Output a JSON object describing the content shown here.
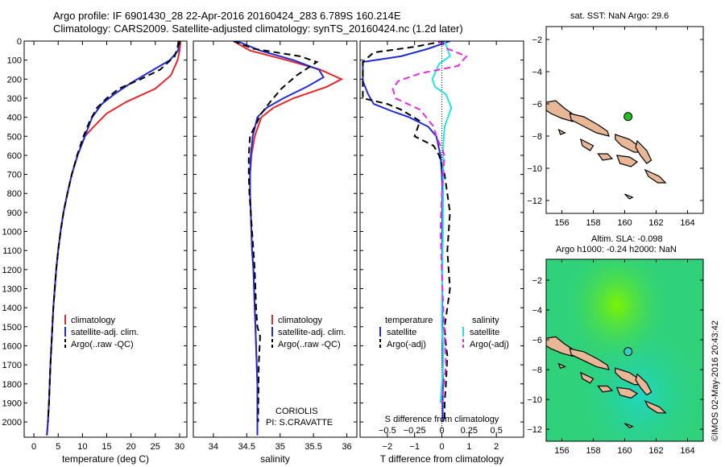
{
  "title": {
    "line1": "Argo profile: IF 6901430_28 22-Apr-2016 20160424_283 6.789S 160.214E",
    "line2": "Climatology: CARS2009. Satellite-adjusted climatology: synTS_20160424.nc (1.2d later)"
  },
  "map1": {
    "title": "sat. SST: NaN  Argo: 29.6"
  },
  "map2": {
    "title_line1": "Altim. SLA: -0.098",
    "title_line2": "Argo h1000: -0.24 h2000: NaN"
  },
  "credit": "©IMOS 02-May-2016 20:43:42",
  "annotations": {
    "institution": "CORIOLIS",
    "pi": "PI: S.CRAVATTE"
  },
  "colors": {
    "climatology": "#e8262a",
    "satellite": "#1f2bd6",
    "argo": "#000000",
    "salinity_satellite": "#22e4e4",
    "salinity_argo": "#e629e6",
    "map_fill_sst": "#ffffff",
    "map_land": "#e8b896",
    "float_marker_sst": "#21c124",
    "float_marker_sla": "#31d1c7",
    "sla_high": "#7cf400",
    "sla_mid": "#2fd17a",
    "sla_low": "#20d6c2"
  },
  "chart_data": [
    {
      "type": "line",
      "title": "",
      "xlabel": "temperature (deg C)",
      "ylabel": "",
      "xlim": [
        -2,
        31.5
      ],
      "ylim": [
        2080,
        0
      ],
      "y_reversed": true,
      "xticks": [
        0,
        5,
        10,
        15,
        20,
        25,
        30
      ],
      "yticks": [
        0,
        100,
        200,
        300,
        400,
        500,
        600,
        700,
        800,
        900,
        1000,
        1100,
        1200,
        1300,
        1400,
        1500,
        1600,
        1700,
        1800,
        1900,
        2000
      ],
      "legend": {
        "position": "bottom-center",
        "entries": [
          "climatology",
          "satellite-adj. clim.",
          "Argo(..raw -QC)"
        ]
      },
      "series": [
        {
          "name": "climatology",
          "style": "solid",
          "color_key": "climatology",
          "x": [
            30.2,
            30.0,
            29.6,
            28.2,
            25.0,
            19.0,
            15.0,
            12.3,
            10.5,
            9.0,
            7.8,
            6.9,
            6.1,
            5.5,
            5.0,
            4.6,
            4.3,
            4.0,
            3.8,
            3.6,
            3.4,
            3.25,
            3.1,
            3.0,
            2.9,
            2.8,
            2.7,
            2.6
          ],
          "y": [
            0,
            50,
            100,
            180,
            250,
            320,
            380,
            450,
            500,
            600,
            700,
            800,
            900,
            1000,
            1100,
            1200,
            1300,
            1400,
            1500,
            1600,
            1700,
            1800,
            1900,
            1950,
            2000,
            2030,
            2060,
            2070
          ]
        },
        {
          "name": "satellite-adj. clim.",
          "style": "solid",
          "color_key": "satellite",
          "x": [
            29.9,
            29.7,
            28.0,
            24.0,
            20.0,
            16.5,
            14.0,
            12.0,
            10.5,
            9.0,
            7.8,
            6.9,
            6.1,
            5.5,
            5.0,
            4.6,
            4.3,
            4.0,
            3.8,
            3.6,
            3.4,
            3.25,
            3.1,
            2.9,
            2.7
          ],
          "y": [
            0,
            50,
            100,
            160,
            220,
            280,
            330,
            400,
            500,
            600,
            700,
            800,
            900,
            1000,
            1100,
            1200,
            1300,
            1400,
            1500,
            1600,
            1700,
            1800,
            1900,
            2000,
            2070
          ]
        },
        {
          "name": "Argo(..raw -QC)",
          "style": "dashed",
          "color_key": "argo",
          "x": [
            29.8,
            29.6,
            29.0,
            26.0,
            22.0,
            17.5,
            15.0,
            13.0,
            11.5,
            10.2,
            8.9,
            7.8,
            6.9,
            6.1,
            5.5,
            5.0,
            4.6,
            4.3,
            4.0,
            3.8,
            3.6,
            3.4,
            3.25,
            3.1,
            3.0,
            2.9
          ],
          "y": [
            0,
            30,
            80,
            150,
            200,
            250,
            300,
            350,
            420,
            500,
            600,
            700,
            800,
            900,
            1000,
            1100,
            1200,
            1300,
            1400,
            1500,
            1600,
            1700,
            1800,
            1900,
            1950,
            2000
          ]
        }
      ]
    },
    {
      "type": "line",
      "title": "",
      "xlabel": "salinity",
      "ylabel": "",
      "xlim": [
        33.7,
        36.15
      ],
      "ylim": [
        2080,
        0
      ],
      "y_reversed": true,
      "xticks": [
        34,
        34.5,
        35,
        35.5,
        36
      ],
      "legend": {
        "position": "bottom-right",
        "entries": [
          "climatology",
          "satellite-adj. clim.",
          "Argo(..raw -QC)"
        ]
      },
      "series": [
        {
          "name": "climatology",
          "style": "solid",
          "color_key": "climatology",
          "x": [
            34.3,
            34.55,
            35.1,
            35.6,
            35.92,
            35.7,
            35.2,
            34.9,
            34.72,
            34.62,
            34.57,
            34.55,
            34.55,
            34.56,
            34.57,
            34.58,
            34.6,
            34.61,
            34.62,
            34.63,
            34.64,
            34.65,
            34.66,
            34.66,
            34.66
          ],
          "y": [
            0,
            50,
            100,
            150,
            200,
            240,
            300,
            350,
            400,
            500,
            600,
            700,
            800,
            900,
            1000,
            1100,
            1200,
            1300,
            1400,
            1500,
            1600,
            1700,
            1800,
            1900,
            2070
          ]
        },
        {
          "name": "satellite-adj. clim.",
          "style": "solid",
          "color_key": "satellite",
          "x": [
            34.35,
            34.7,
            35.2,
            35.58,
            35.65,
            35.4,
            35.05,
            34.8,
            34.66,
            34.59,
            34.56,
            34.55,
            34.55,
            34.56,
            34.57,
            34.58,
            34.6,
            34.61,
            34.62,
            34.63,
            34.64,
            34.65,
            34.66,
            34.66
          ],
          "y": [
            0,
            50,
            100,
            150,
            190,
            240,
            300,
            350,
            400,
            500,
            600,
            700,
            800,
            900,
            1000,
            1100,
            1200,
            1300,
            1400,
            1500,
            1600,
            1700,
            1800,
            2070
          ]
        },
        {
          "name": "Argo(..raw -QC)",
          "style": "dashed",
          "color_key": "argo",
          "x": [
            34.3,
            34.6,
            35.3,
            35.55,
            35.25,
            35.02,
            34.85,
            34.72,
            34.62,
            34.55,
            34.53,
            34.53,
            34.54,
            34.56,
            34.58,
            34.6,
            34.62,
            34.63,
            34.64,
            34.66,
            34.7,
            34.68,
            34.67
          ],
          "y": [
            0,
            40,
            80,
            110,
            180,
            250,
            320,
            380,
            450,
            500,
            600,
            700,
            800,
            900,
            1000,
            1100,
            1200,
            1300,
            1400,
            1500,
            1550,
            1700,
            2000
          ]
        }
      ]
    },
    {
      "type": "line",
      "title": "",
      "xlabel": "T difference from climatology",
      "xlabel_top": "S difference from climatology",
      "ylabel": "",
      "xlim": [
        -3,
        3
      ],
      "ylim": [
        2080,
        0
      ],
      "y_reversed": true,
      "xticks": [
        -2,
        -1,
        0,
        1,
        2
      ],
      "x2ticks": [
        -0.5,
        -0.25,
        0,
        0.25,
        0.5
      ],
      "x2_scale": 0.25,
      "zero_line": "dotted",
      "legend": {
        "position": "bottom-center",
        "headers": [
          "temperature",
          "salinity"
        ],
        "entries": [
          "satellite",
          "Argo(-adj)",
          "satellite",
          "Argo(-adj)"
        ]
      },
      "series": [
        {
          "name": "satellite",
          "quantity": "temperature",
          "style": "solid",
          "color_key": "satellite",
          "x": [
            0.3,
            -0.5,
            -1.5,
            -2.9,
            -2.9,
            -2.9,
            -2.7,
            -2.5,
            -1.8,
            -1.2,
            -0.5,
            -0.2,
            -0.05,
            0.0,
            0.02,
            0.02,
            0.01,
            0.02,
            0.03,
            0.04,
            0.03,
            0.03
          ],
          "y": [
            0,
            40,
            80,
            110,
            170,
            210,
            280,
            330,
            370,
            400,
            450,
            500,
            600,
            700,
            800,
            900,
            1200,
            1500,
            1700,
            1800,
            1900,
            2000
          ]
        },
        {
          "name": "Argo(-adj)",
          "quantity": "temperature",
          "style": "dashed",
          "color_key": "argo",
          "x": [
            0.1,
            -1.0,
            -2.5,
            -2.9,
            -2.9,
            -2.0,
            -1.5,
            -0.8,
            -1.0,
            -0.3,
            -0.1,
            0.1,
            0.3,
            0.25,
            0.2,
            0.3,
            0.2,
            0.1,
            0.15,
            0.2,
            0.15,
            0.1,
            0.1
          ],
          "y": [
            0,
            30,
            60,
            110,
            300,
            330,
            360,
            420,
            500,
            550,
            600,
            700,
            900,
            1000,
            1100,
            1300,
            1400,
            1500,
            1600,
            1650,
            1800,
            1900,
            2000
          ]
        },
        {
          "name": "satellite",
          "quantity": "salinity",
          "style": "solid",
          "color_key": "salinity_satellite",
          "x": [
            0.1,
            0.2,
            0.3,
            -0.1,
            -0.35,
            -0.25,
            0.15,
            0.35,
            0.1,
            0.05,
            0.05,
            0.05,
            0.04,
            0.02,
            0.0,
            0.0,
            0.05,
            0.05,
            0.0,
            -0.05
          ],
          "y": [
            0,
            40,
            80,
            120,
            200,
            240,
            280,
            350,
            450,
            550,
            650,
            800,
            1000,
            1200,
            1400,
            1500,
            1600,
            1700,
            1800,
            1900
          ]
        },
        {
          "name": "Argo(-adj)",
          "quantity": "salinity",
          "style": "dashed",
          "color_key": "salinity_argo",
          "x": [
            -0.1,
            0.2,
            0.9,
            0.6,
            -0.8,
            -1.6,
            -1.8,
            -1.7,
            -0.8,
            -0.3,
            -0.2,
            0.1,
            0.05,
            0.0,
            -0.05,
            0.0,
            0.05,
            0.1,
            0.15,
            0.0
          ],
          "y": [
            0,
            40,
            80,
            130,
            170,
            210,
            250,
            300,
            360,
            450,
            500,
            600,
            700,
            800,
            1000,
            1200,
            1400,
            1550,
            1700,
            1900
          ]
        }
      ]
    },
    {
      "type": "scatter",
      "title": "sat. SST: NaN  Argo: 29.6",
      "xlabel": "",
      "ylabel": "",
      "xlim": [
        155,
        165
      ],
      "ylim": [
        -12.8,
        -1.2
      ],
      "xticks": [
        156,
        158,
        160,
        162,
        164
      ],
      "yticks": [
        -2,
        -4,
        -6,
        -8,
        -10,
        -12
      ],
      "points": [
        {
          "name": "float position",
          "x": 160.214,
          "y": -6.789
        }
      ]
    },
    {
      "type": "heatmap",
      "title": "Altim. SLA: -0.098",
      "subtitle": "Argo h1000: -0.24 h2000: NaN",
      "xlabel": "",
      "ylabel": "",
      "xlim": [
        155,
        165
      ],
      "ylim": [
        -12.8,
        -0.6
      ],
      "xticks": [
        156,
        158,
        160,
        162,
        164
      ],
      "yticks": [
        -2,
        -4,
        -6,
        -8,
        -10,
        -12
      ],
      "points": [
        {
          "name": "float position",
          "x": 160.214,
          "y": -6.789
        }
      ]
    }
  ]
}
